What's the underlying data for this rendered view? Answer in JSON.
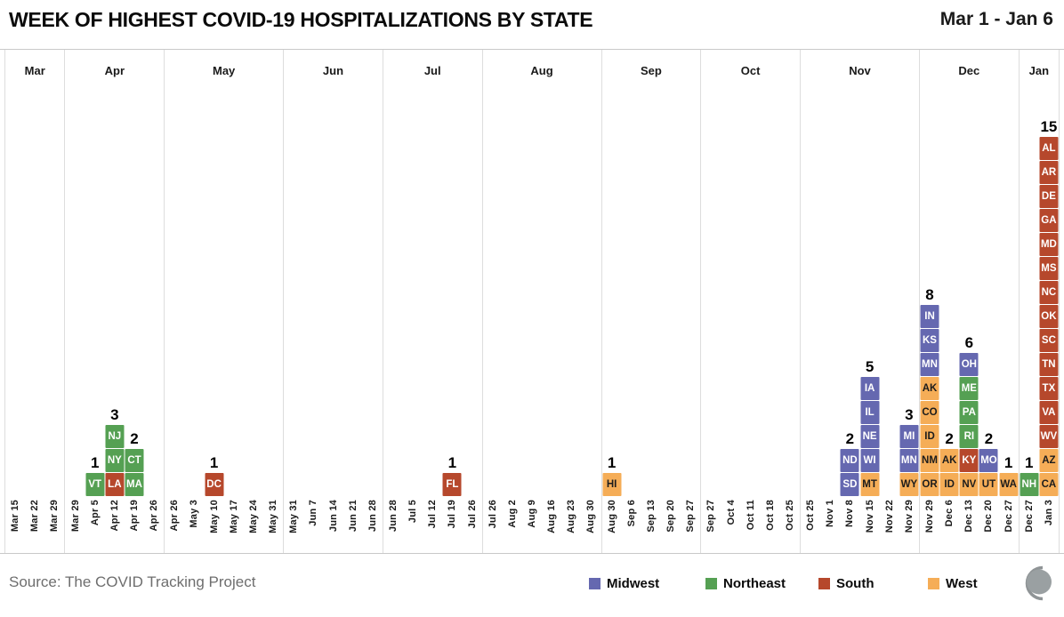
{
  "header": {
    "title": "WEEK OF HIGHEST COVID-19 HOSPITALIZATIONS BY STATE",
    "date_range": "Mar 1 - Jan 6"
  },
  "footer": {
    "source": "Source: The COVID Tracking Project",
    "logo": "covid-tracking-project-logo"
  },
  "legend": [
    {
      "label": "Midwest",
      "region": "MW",
      "color": "#6568b0"
    },
    {
      "label": "Northeast",
      "region": "NE",
      "color": "#55a053"
    },
    {
      "label": "South",
      "region": "S",
      "color": "#b6482c"
    },
    {
      "label": "West",
      "region": "W",
      "color": "#f5ad57"
    }
  ],
  "colors": {
    "MW": "#6568b0",
    "NE": "#55a053",
    "S": "#b6482c",
    "W": "#f5ad57"
  },
  "chart_data": {
    "type": "bar",
    "variant": "stacked-state-squares-by-week",
    "title": "WEEK OF HIGHEST COVID-19 HOSPITALIZATIONS BY STATE",
    "xlabel": "Week (grouped by month panels, boundary weeks repeated)",
    "ylabel": "Number of states (count shown above each stack)",
    "grid": "vertical month dividers",
    "legend_position": "bottom-right",
    "panels": [
      {
        "month": "Mar",
        "columns": [
          {
            "week": "Mar 15",
            "count": null,
            "states": []
          },
          {
            "week": "Mar 22",
            "count": null,
            "states": []
          },
          {
            "week": "Mar 29",
            "count": null,
            "states": []
          }
        ]
      },
      {
        "month": "Apr",
        "columns": [
          {
            "week": "Mar 29",
            "count": null,
            "states": []
          },
          {
            "week": "Apr 5",
            "count": "1",
            "states": [
              {
                "abbr": "VT",
                "region": "NE"
              }
            ]
          },
          {
            "week": "Apr 12",
            "count": "3",
            "states": [
              {
                "abbr": "NJ",
                "region": "NE"
              },
              {
                "abbr": "NY",
                "region": "NE"
              },
              {
                "abbr": "LA",
                "region": "S"
              }
            ]
          },
          {
            "week": "Apr 19",
            "count": "2",
            "states": [
              {
                "abbr": "CT",
                "region": "NE"
              },
              {
                "abbr": "MA",
                "region": "NE"
              }
            ]
          },
          {
            "week": "Apr 26",
            "count": null,
            "states": []
          }
        ]
      },
      {
        "month": "May",
        "columns": [
          {
            "week": "Apr 26",
            "count": null,
            "states": []
          },
          {
            "week": "May 3",
            "count": null,
            "states": []
          },
          {
            "week": "May 10",
            "count": "1",
            "states": [
              {
                "abbr": "DC",
                "region": "S"
              }
            ]
          },
          {
            "week": "May 17",
            "count": null,
            "states": []
          },
          {
            "week": "May 24",
            "count": null,
            "states": []
          },
          {
            "week": "May 31",
            "count": null,
            "states": []
          }
        ]
      },
      {
        "month": "Jun",
        "columns": [
          {
            "week": "May 31",
            "count": null,
            "states": []
          },
          {
            "week": "Jun 7",
            "count": null,
            "states": []
          },
          {
            "week": "Jun 14",
            "count": null,
            "states": []
          },
          {
            "week": "Jun 21",
            "count": null,
            "states": []
          },
          {
            "week": "Jun 28",
            "count": null,
            "states": []
          }
        ]
      },
      {
        "month": "Jul",
        "columns": [
          {
            "week": "Jun 28",
            "count": null,
            "states": []
          },
          {
            "week": "Jul 5",
            "count": null,
            "states": []
          },
          {
            "week": "Jul 12",
            "count": null,
            "states": []
          },
          {
            "week": "Jul 19",
            "count": "1",
            "states": [
              {
                "abbr": "FL",
                "region": "S"
              }
            ]
          },
          {
            "week": "Jul 26",
            "count": null,
            "states": []
          }
        ]
      },
      {
        "month": "Aug",
        "columns": [
          {
            "week": "Jul 26",
            "count": null,
            "states": []
          },
          {
            "week": "Aug 2",
            "count": null,
            "states": []
          },
          {
            "week": "Aug 9",
            "count": null,
            "states": []
          },
          {
            "week": "Aug 16",
            "count": null,
            "states": []
          },
          {
            "week": "Aug 23",
            "count": null,
            "states": []
          },
          {
            "week": "Aug 30",
            "count": null,
            "states": []
          }
        ]
      },
      {
        "month": "Sep",
        "columns": [
          {
            "week": "Aug 30",
            "count": "1",
            "states": [
              {
                "abbr": "HI",
                "region": "W"
              }
            ]
          },
          {
            "week": "Sep 6",
            "count": null,
            "states": []
          },
          {
            "week": "Sep 13",
            "count": null,
            "states": []
          },
          {
            "week": "Sep 20",
            "count": null,
            "states": []
          },
          {
            "week": "Sep 27",
            "count": null,
            "states": []
          }
        ]
      },
      {
        "month": "Oct",
        "columns": [
          {
            "week": "Sep 27",
            "count": null,
            "states": []
          },
          {
            "week": "Oct 4",
            "count": null,
            "states": []
          },
          {
            "week": "Oct 11",
            "count": null,
            "states": []
          },
          {
            "week": "Oct 18",
            "count": null,
            "states": []
          },
          {
            "week": "Oct 25",
            "count": null,
            "states": []
          }
        ]
      },
      {
        "month": "Nov",
        "columns": [
          {
            "week": "Oct 25",
            "count": null,
            "states": []
          },
          {
            "week": "Nov 1",
            "count": null,
            "states": []
          },
          {
            "week": "Nov 8",
            "count": "2",
            "states": [
              {
                "abbr": "ND",
                "region": "MW"
              },
              {
                "abbr": "SD",
                "region": "MW"
              }
            ]
          },
          {
            "week": "Nov 15",
            "count": "5",
            "states": [
              {
                "abbr": "IA",
                "region": "MW"
              },
              {
                "abbr": "IL",
                "region": "MW"
              },
              {
                "abbr": "NE",
                "region": "MW"
              },
              {
                "abbr": "WI",
                "region": "MW"
              },
              {
                "abbr": "MT",
                "region": "W"
              }
            ]
          },
          {
            "week": "Nov 22",
            "count": null,
            "states": []
          },
          {
            "week": "Nov 29",
            "count": "3",
            "states": [
              {
                "abbr": "MI",
                "region": "MW"
              },
              {
                "abbr": "MN",
                "region": "MW"
              },
              {
                "abbr": "WY",
                "region": "W"
              }
            ]
          }
        ]
      },
      {
        "month": "Dec",
        "columns": [
          {
            "week": "Nov 29",
            "count": "8",
            "states": [
              {
                "abbr": "IN",
                "region": "MW"
              },
              {
                "abbr": "KS",
                "region": "MW"
              },
              {
                "abbr": "MN",
                "region": "MW"
              },
              {
                "abbr": "AK",
                "region": "W"
              },
              {
                "abbr": "CO",
                "region": "W"
              },
              {
                "abbr": "ID",
                "region": "W"
              },
              {
                "abbr": "NM",
                "region": "W"
              },
              {
                "abbr": "OR",
                "region": "W"
              }
            ]
          },
          {
            "week": "Dec 6",
            "count": "2",
            "states": [
              {
                "abbr": "AK",
                "region": "W"
              },
              {
                "abbr": "ID",
                "region": "W"
              }
            ]
          },
          {
            "week": "Dec 13",
            "count": "6",
            "states": [
              {
                "abbr": "OH",
                "region": "MW"
              },
              {
                "abbr": "ME",
                "region": "NE"
              },
              {
                "abbr": "PA",
                "region": "NE"
              },
              {
                "abbr": "RI",
                "region": "NE"
              },
              {
                "abbr": "KY",
                "region": "S"
              },
              {
                "abbr": "NV",
                "region": "W"
              }
            ]
          },
          {
            "week": "Dec 20",
            "count": "2",
            "states": [
              {
                "abbr": "MO",
                "region": "MW"
              },
              {
                "abbr": "UT",
                "region": "W"
              }
            ]
          },
          {
            "week": "Dec 27",
            "count": "1",
            "states": [
              {
                "abbr": "WA",
                "region": "W"
              }
            ]
          }
        ]
      },
      {
        "month": "Jan",
        "columns": [
          {
            "week": "Dec 27",
            "count": "1",
            "states": [
              {
                "abbr": "NH",
                "region": "NE"
              }
            ]
          },
          {
            "week": "Jan 3",
            "count": "15",
            "states": [
              {
                "abbr": "AL",
                "region": "S"
              },
              {
                "abbr": "AR",
                "region": "S"
              },
              {
                "abbr": "DE",
                "region": "S"
              },
              {
                "abbr": "GA",
                "region": "S"
              },
              {
                "abbr": "MD",
                "region": "S"
              },
              {
                "abbr": "MS",
                "region": "S"
              },
              {
                "abbr": "NC",
                "region": "S"
              },
              {
                "abbr": "OK",
                "region": "S"
              },
              {
                "abbr": "SC",
                "region": "S"
              },
              {
                "abbr": "TN",
                "region": "S"
              },
              {
                "abbr": "TX",
                "region": "S"
              },
              {
                "abbr": "VA",
                "region": "S"
              },
              {
                "abbr": "WV",
                "region": "S"
              },
              {
                "abbr": "AZ",
                "region": "W"
              },
              {
                "abbr": "CA",
                "region": "W"
              }
            ]
          }
        ]
      }
    ]
  }
}
